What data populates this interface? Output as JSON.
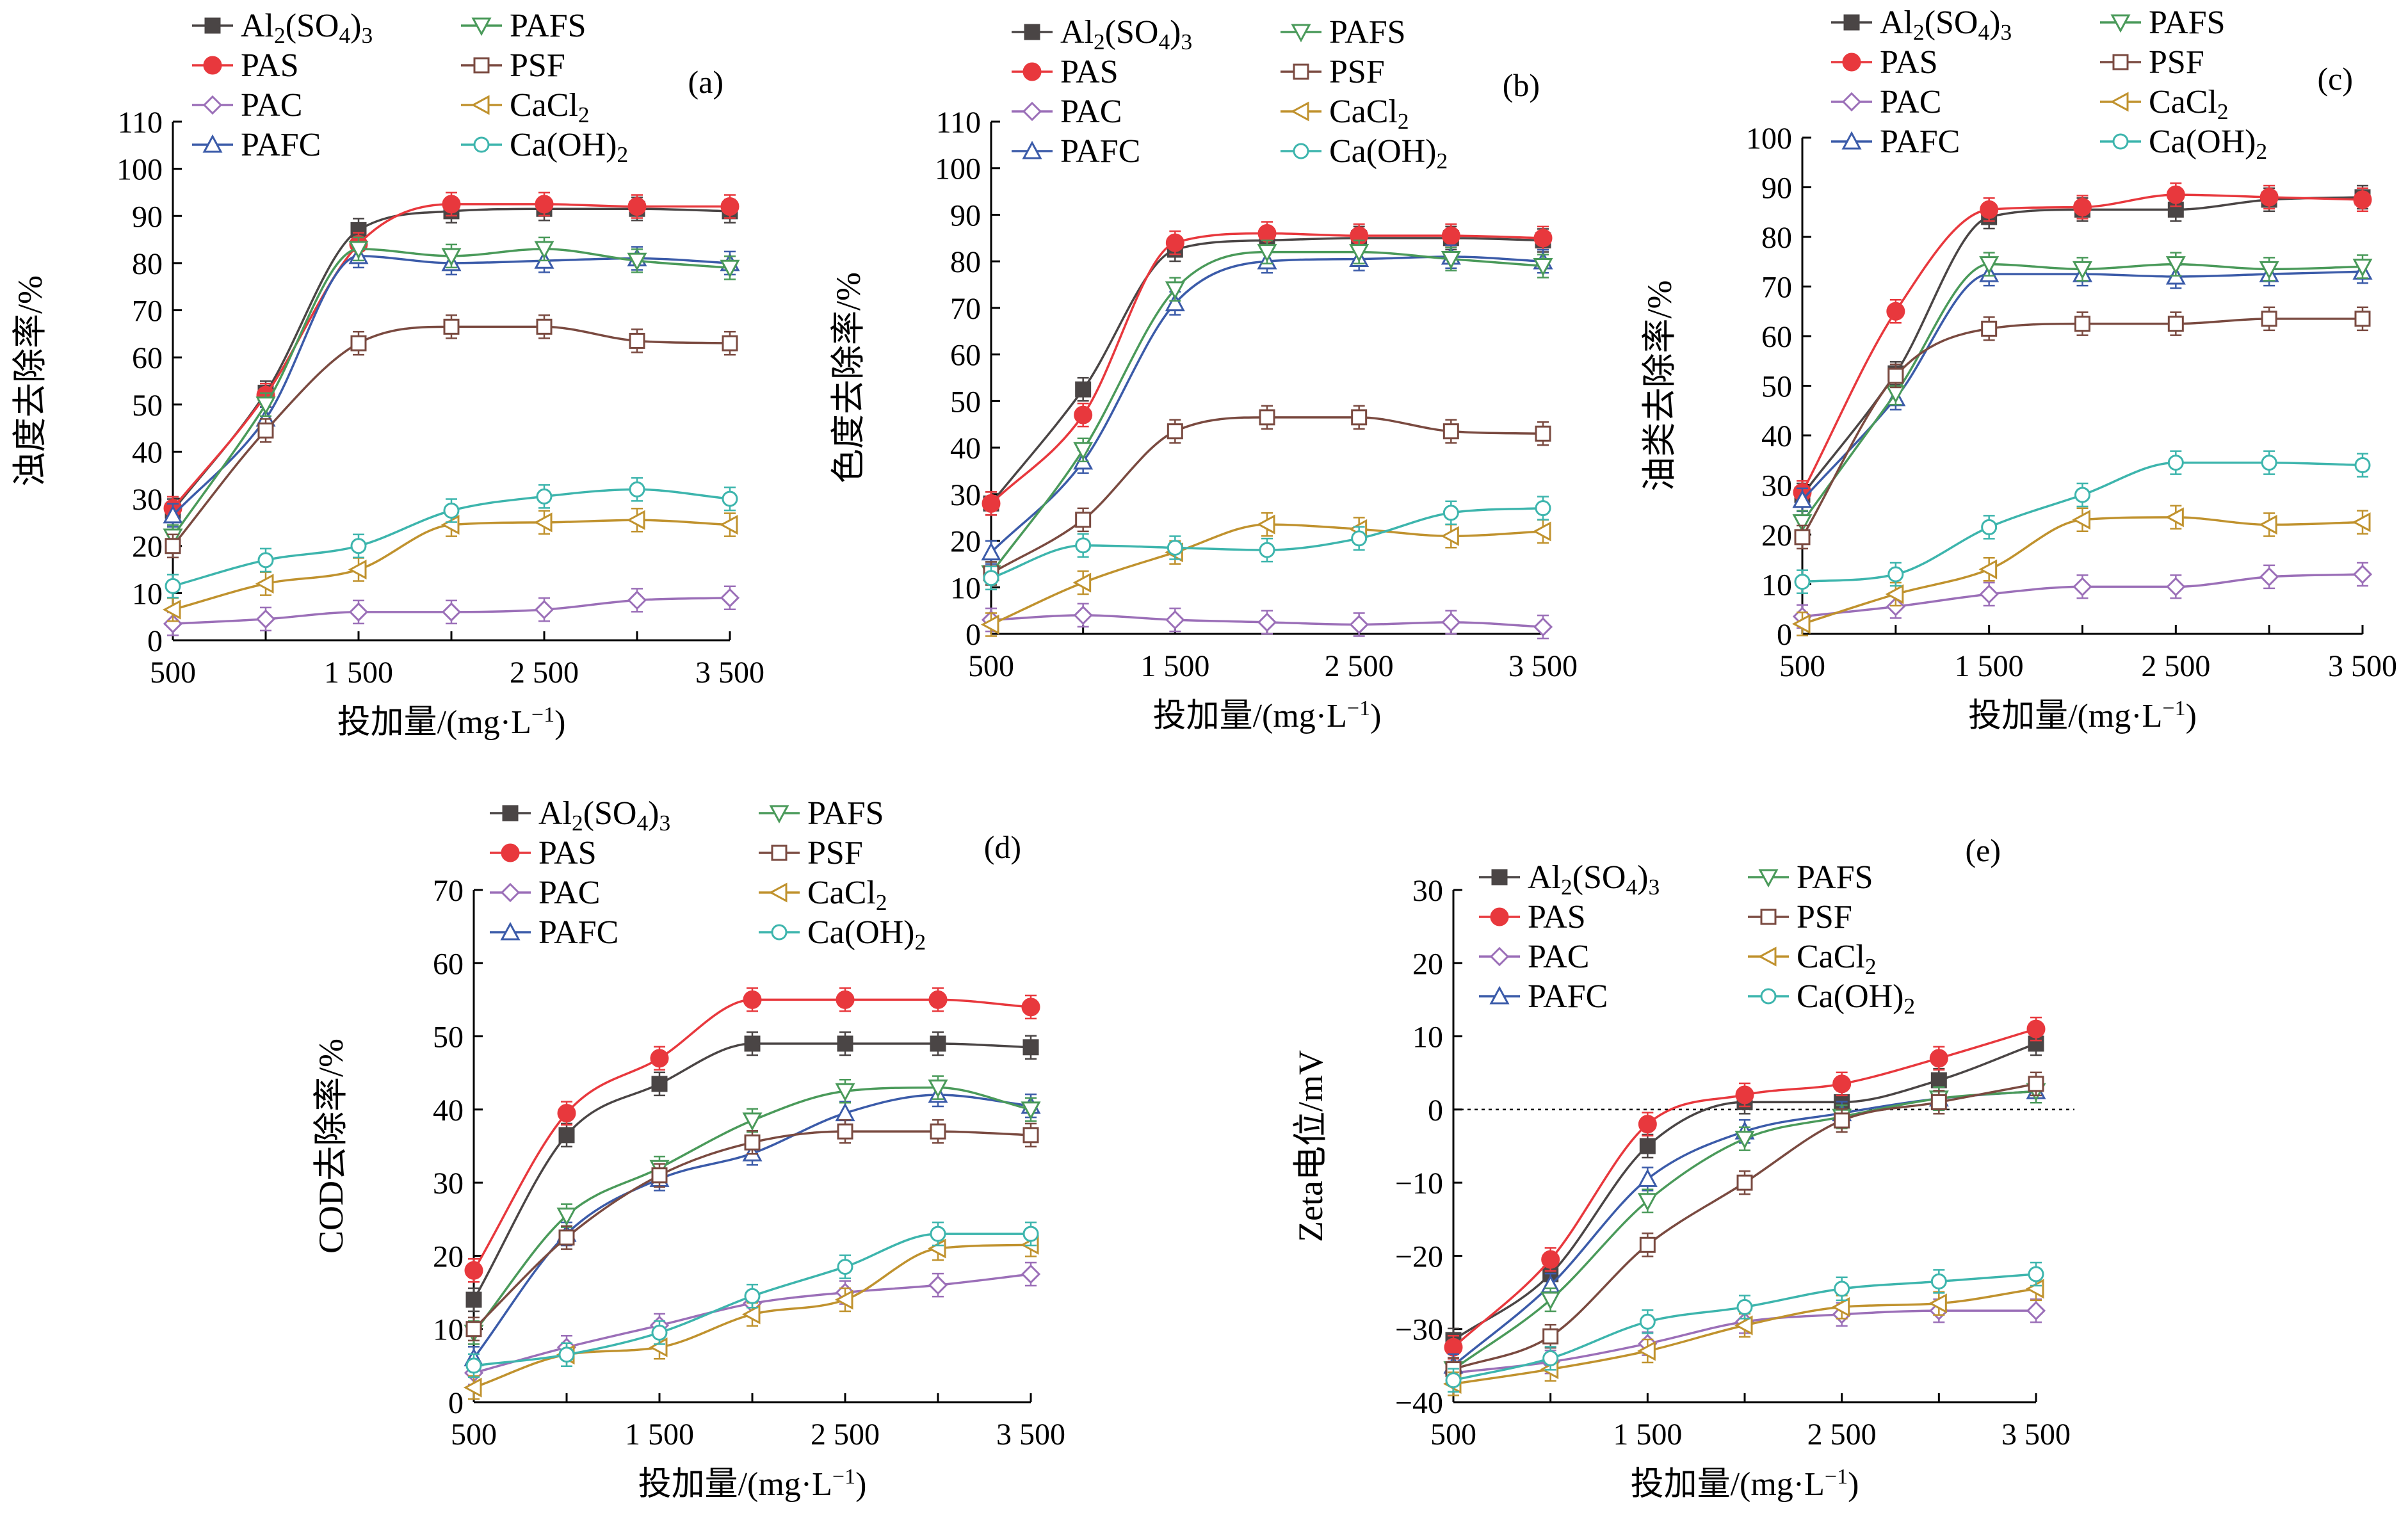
{
  "figure": {
    "marker_styles": {
      "Al2(SO4)3": "square-filled",
      "PAS": "circle-filled",
      "PAC": "diamond-open",
      "PAFC": "triangle-up-open",
      "PAFS": "triangle-down-open",
      "PSF": "square-open",
      "CaCl2": "triangle-left-open",
      "Ca(OH)2": "circle-open"
    }
  },
  "chart_data": [
    {
      "type": "line",
      "panel_label": "(a)",
      "xlabel": "投加量/(mg·L⁻¹)",
      "ylabel": "浊度去除率/%",
      "x": [
        500,
        1000,
        1500,
        2000,
        2500,
        3000,
        3500
      ],
      "x_ticks": [
        500,
        1500,
        2500,
        3500
      ],
      "x_tick_labels": [
        "500",
        "1 500",
        "2 500",
        "3 500"
      ],
      "xlim": [
        500,
        3500
      ],
      "ylim": [
        0,
        110
      ],
      "y_ticks": [
        0,
        10,
        20,
        30,
        40,
        50,
        60,
        70,
        80,
        90,
        100,
        110
      ],
      "zero_line": false,
      "series": [
        {
          "name": "Al2(SO4)3",
          "color": "#4a4545",
          "values": [
            27.5,
            52.5,
            87,
            91,
            91.5,
            91.5,
            91
          ]
        },
        {
          "name": "PAS",
          "color": "#e8383d",
          "values": [
            28,
            52,
            84,
            92.5,
            92.5,
            92,
            92
          ]
        },
        {
          "name": "PAC",
          "color": "#9b6fb8",
          "values": [
            3.5,
            4.5,
            6,
            6,
            6.5,
            8.5,
            9
          ]
        },
        {
          "name": "PAFC",
          "color": "#3b5ba9",
          "values": [
            26.5,
            47,
            81.5,
            80,
            80.5,
            81,
            80
          ]
        },
        {
          "name": "PAFS",
          "color": "#4a9a5a",
          "values": [
            22,
            50,
            83,
            81.5,
            83,
            80.5,
            79
          ]
        },
        {
          "name": "PSF",
          "color": "#7a4a40",
          "values": [
            20,
            44.5,
            63,
            66.5,
            66.5,
            63.5,
            63
          ]
        },
        {
          "name": "CaCl2",
          "color": "#c0922e",
          "values": [
            6.5,
            12,
            15,
            24.5,
            25,
            25.5,
            24.5
          ]
        },
        {
          "name": "Ca(OH)2",
          "color": "#3db5ad",
          "values": [
            11.5,
            17,
            20,
            27.5,
            30.5,
            32,
            30
          ]
        }
      ]
    },
    {
      "type": "line",
      "panel_label": "(b)",
      "xlabel": "投加量/(mg·L⁻¹)",
      "ylabel": "色度去除率/%",
      "x": [
        500,
        1000,
        1500,
        2000,
        2500,
        3000,
        3500
      ],
      "x_ticks": [
        500,
        1500,
        2500,
        3500
      ],
      "x_tick_labels": [
        "500",
        "1 500",
        "2 500",
        "3 500"
      ],
      "xlim": [
        500,
        3500
      ],
      "ylim": [
        0,
        110
      ],
      "y_ticks": [
        0,
        10,
        20,
        30,
        40,
        50,
        60,
        70,
        80,
        90,
        100,
        110
      ],
      "zero_line": false,
      "series": [
        {
          "name": "Al2(SO4)3",
          "color": "#4a4545",
          "values": [
            28,
            52.5,
            82.5,
            84.5,
            85,
            85,
            84.5
          ]
        },
        {
          "name": "PAS",
          "color": "#e8383d",
          "values": [
            28,
            47,
            84,
            86,
            85.5,
            85.5,
            85
          ]
        },
        {
          "name": "PAC",
          "color": "#9b6fb8",
          "values": [
            3,
            4,
            3,
            2.5,
            2,
            2.5,
            1.5
          ]
        },
        {
          "name": "PAFC",
          "color": "#3b5ba9",
          "values": [
            17.5,
            37,
            71,
            80,
            80.5,
            81,
            80
          ]
        },
        {
          "name": "PAFS",
          "color": "#4a9a5a",
          "values": [
            13,
            39.5,
            74,
            82,
            82,
            80.5,
            79
          ]
        },
        {
          "name": "PSF",
          "color": "#7a4a40",
          "values": [
            13,
            24.5,
            43.5,
            46.5,
            46.5,
            43.5,
            43
          ]
        },
        {
          "name": "CaCl2",
          "color": "#c0922e",
          "values": [
            2,
            11,
            17.5,
            23.5,
            22.5,
            21,
            22
          ]
        },
        {
          "name": "Ca(OH)2",
          "color": "#3db5ad",
          "values": [
            12,
            19,
            18.5,
            18,
            20.5,
            26,
            27
          ]
        }
      ]
    },
    {
      "type": "line",
      "panel_label": "(c)",
      "xlabel": "投加量/(mg·L⁻¹)",
      "ylabel": "油类去除率/%",
      "x": [
        500,
        1000,
        1500,
        2000,
        2500,
        3000,
        3500
      ],
      "x_ticks": [
        500,
        1500,
        2500,
        3500
      ],
      "x_tick_labels": [
        "500",
        "1 500",
        "2 500",
        "3 500"
      ],
      "xlim": [
        500,
        3500
      ],
      "ylim": [
        0,
        100
      ],
      "y_ticks": [
        0,
        10,
        20,
        30,
        40,
        50,
        60,
        70,
        80,
        90,
        100
      ],
      "zero_line": false,
      "series": [
        {
          "name": "Al2(SO4)3",
          "color": "#4a4545",
          "values": [
            28,
            52.5,
            84,
            85.5,
            85.5,
            87.5,
            88
          ]
        },
        {
          "name": "PAS",
          "color": "#e8383d",
          "values": [
            28.5,
            65,
            85.5,
            86,
            88.5,
            88,
            87.5
          ]
        },
        {
          "name": "PAC",
          "color": "#9b6fb8",
          "values": [
            3.5,
            5.5,
            8,
            9.5,
            9.5,
            11.5,
            12
          ]
        },
        {
          "name": "PAFC",
          "color": "#3b5ba9",
          "values": [
            27,
            47.5,
            72.5,
            72.5,
            72,
            72.5,
            73
          ]
        },
        {
          "name": "PAFS",
          "color": "#4a9a5a",
          "values": [
            22.5,
            48.5,
            74.5,
            73.5,
            74.5,
            73.5,
            74
          ]
        },
        {
          "name": "PSF",
          "color": "#7a4a40",
          "values": [
            19.5,
            52,
            61.5,
            62.5,
            62.5,
            63.5,
            63.5
          ]
        },
        {
          "name": "CaCl2",
          "color": "#c0922e",
          "values": [
            2,
            8,
            13,
            23,
            23.5,
            22,
            22.5
          ]
        },
        {
          "name": "Ca(OH)2",
          "color": "#3db5ad",
          "values": [
            10.5,
            12,
            21.5,
            28,
            34.5,
            34.5,
            34
          ]
        }
      ]
    },
    {
      "type": "line",
      "panel_label": "(d)",
      "xlabel": "投加量/(mg·L⁻¹)",
      "ylabel": "COD去除率/%",
      "x": [
        500,
        1000,
        1500,
        2000,
        2500,
        3000,
        3500
      ],
      "x_ticks": [
        500,
        1500,
        2500,
        3500
      ],
      "x_tick_labels": [
        "500",
        "1 500",
        "2 500",
        "3 500"
      ],
      "xlim": [
        500,
        3500
      ],
      "ylim": [
        0,
        70
      ],
      "y_ticks": [
        0,
        10,
        20,
        30,
        40,
        50,
        60,
        70
      ],
      "zero_line": false,
      "series": [
        {
          "name": "Al2(SO4)3",
          "color": "#4a4545",
          "values": [
            14,
            36.5,
            43.5,
            49,
            49,
            49,
            48.5
          ]
        },
        {
          "name": "PAS",
          "color": "#e8383d",
          "values": [
            18,
            39.5,
            47,
            55,
            55,
            55,
            54
          ]
        },
        {
          "name": "PAC",
          "color": "#9b6fb8",
          "values": [
            4,
            7.5,
            10.5,
            13.5,
            15,
            16,
            17.5
          ]
        },
        {
          "name": "PAFC",
          "color": "#3b5ba9",
          "values": [
            6,
            23,
            30.5,
            34,
            39.5,
            42,
            40.5
          ]
        },
        {
          "name": "PAFS",
          "color": "#4a9a5a",
          "values": [
            9.5,
            25.5,
            32,
            38.5,
            42.5,
            43,
            40
          ]
        },
        {
          "name": "PSF",
          "color": "#7a4a40",
          "values": [
            10,
            22.5,
            31,
            35.5,
            37,
            37,
            36.5
          ]
        },
        {
          "name": "CaCl2",
          "color": "#c0922e",
          "values": [
            2,
            6.5,
            7.5,
            12,
            14,
            21,
            21.5
          ]
        },
        {
          "name": "Ca(OH)2",
          "color": "#3db5ad",
          "values": [
            5,
            6.5,
            9.5,
            14.5,
            18.5,
            23,
            23
          ]
        }
      ]
    },
    {
      "type": "line",
      "panel_label": "(e)",
      "xlabel": "投加量/(mg·L⁻¹)",
      "ylabel": "Zeta电位/mV",
      "x": [
        500,
        1000,
        1500,
        2000,
        2500,
        3000,
        3500
      ],
      "x_ticks": [
        500,
        1500,
        2500,
        3500
      ],
      "x_tick_labels": [
        "500",
        "1 500",
        "2 500",
        "3 500"
      ],
      "xlim": [
        500,
        3500
      ],
      "ylim": [
        -40,
        30
      ],
      "y_ticks": [
        -40,
        -30,
        -20,
        -10,
        0,
        10,
        20,
        30
      ],
      "zero_line": true,
      "series": [
        {
          "name": "Al2(SO4)3",
          "color": "#4a4545",
          "values": [
            -31.5,
            -22.5,
            -5,
            1,
            1,
            4,
            9
          ]
        },
        {
          "name": "PAS",
          "color": "#e8383d",
          "values": [
            -32.5,
            -20.5,
            -2,
            2,
            3.5,
            7,
            11
          ]
        },
        {
          "name": "PAC",
          "color": "#9b6fb8",
          "values": [
            -36,
            -34.5,
            -32,
            -29,
            -28,
            -27.5,
            -27.5
          ]
        },
        {
          "name": "PAFC",
          "color": "#3b5ba9",
          "values": [
            -35,
            -24,
            -9.5,
            -3,
            -0.5,
            1.5,
            2.5
          ]
        },
        {
          "name": "PAFS",
          "color": "#4a9a5a",
          "values": [
            -35.5,
            -26,
            -12.5,
            -4,
            -1,
            1.5,
            2.5
          ]
        },
        {
          "name": "PSF",
          "color": "#7a4a40",
          "values": [
            -35.5,
            -31,
            -18.5,
            -10,
            -1.5,
            1,
            3.5
          ]
        },
        {
          "name": "CaCl2",
          "color": "#c0922e",
          "values": [
            -37.5,
            -35.5,
            -33,
            -29.5,
            -27,
            -26.5,
            -24.5
          ]
        },
        {
          "name": "Ca(OH)2",
          "color": "#3db5ad",
          "values": [
            -37,
            -34,
            -29,
            -27,
            -24.5,
            -23.5,
            -22.5
          ]
        }
      ]
    }
  ]
}
